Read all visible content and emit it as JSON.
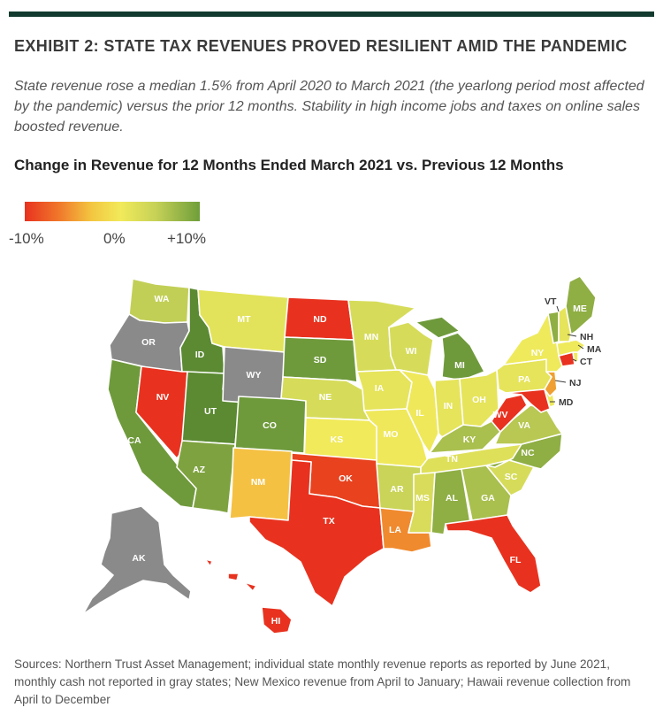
{
  "exhibit_title": "EXHIBIT 2: STATE TAX REVENUES PROVED RESILIENT AMID THE PANDEMIC",
  "subtitle": "State revenue rose a median 1.5% from April 2020 to March 2021 (the yearlong period most affected by the pandemic) versus the prior 12 months. Stability in high income jobs and taxes on online sales boosted revenue.",
  "map_title": "Change in Revenue for 12 Months Ended March 2021 vs. Previous 12 Months",
  "legend": {
    "min_label": "-10%",
    "mid_label": "0%",
    "max_label": "+10%",
    "colors": [
      "#e8321f",
      "#f07a2b",
      "#f3c640",
      "#f1ea5a",
      "#c6d157",
      "#6f9e3a"
    ],
    "not_reported_color": "#8a8a8a"
  },
  "states": {
    "WA": {
      "label": "WA",
      "color": "#c2cf57"
    },
    "OR": {
      "label": "OR",
      "color": "#8a8a8a"
    },
    "CA": {
      "label": "CA",
      "color": "#6f9a3c"
    },
    "ID": {
      "label": "ID",
      "color": "#5b8a32"
    },
    "NV": {
      "label": "NV",
      "color": "#e8321f"
    },
    "UT": {
      "label": "UT",
      "color": "#5b8a32"
    },
    "AZ": {
      "label": "AZ",
      "color": "#7ea23f"
    },
    "MT": {
      "label": "MT",
      "color": "#e2e35a"
    },
    "WY": {
      "label": "WY",
      "color": "#8a8a8a"
    },
    "CO": {
      "label": "CO",
      "color": "#6f9a3c"
    },
    "NM": {
      "label": "NM",
      "color": "#f5c143"
    },
    "ND": {
      "label": "ND",
      "color": "#e8321f"
    },
    "SD": {
      "label": "SD",
      "color": "#6f9a3c"
    },
    "NE": {
      "label": "NE",
      "color": "#d6dc5a"
    },
    "KS": {
      "label": "KS",
      "color": "#f1ea5a"
    },
    "OK": {
      "label": "OK",
      "color": "#e8421f"
    },
    "TX": {
      "label": "TX",
      "color": "#e8321f"
    },
    "MN": {
      "label": "MN",
      "color": "#d6dc5a"
    },
    "IA": {
      "label": "IA",
      "color": "#e6e45a"
    },
    "MO": {
      "label": "MO",
      "color": "#efe85a"
    },
    "AR": {
      "label": "AR",
      "color": "#c9d458"
    },
    "LA": {
      "label": "LA",
      "color": "#f08a2e"
    },
    "WI": {
      "label": "WI",
      "color": "#d6dc5a"
    },
    "IL": {
      "label": "IL",
      "color": "#efe85a"
    },
    "MI": {
      "label": "MI",
      "color": "#6f9a3c"
    },
    "IN": {
      "label": "IN",
      "color": "#e6e45a"
    },
    "OH": {
      "label": "OH",
      "color": "#e6e45a"
    },
    "KY": {
      "label": "KY",
      "color": "#a9bf4e"
    },
    "TN": {
      "label": "TN",
      "color": "#dfe05a"
    },
    "MS": {
      "label": "MS",
      "color": "#d9dc5a"
    },
    "AL": {
      "label": "AL",
      "color": "#8fae44"
    },
    "GA": {
      "label": "GA",
      "color": "#a9bf4e"
    },
    "FL": {
      "label": "FL",
      "color": "#e8321f"
    },
    "SC": {
      "label": "SC",
      "color": "#d6dc5a"
    },
    "NC": {
      "label": "NC",
      "color": "#8fae44"
    },
    "VA": {
      "label": "VA",
      "color": "#b8c852"
    },
    "WV": {
      "label": "WV",
      "color": "#e8321f"
    },
    "PA": {
      "label": "PA",
      "color": "#e6e45a"
    },
    "NY": {
      "label": "NY",
      "color": "#eeea5c"
    },
    "VT": {
      "label": "VT",
      "color": "#8fae44"
    },
    "NH": {
      "label": "NH",
      "color": "#e6e45a"
    },
    "ME": {
      "label": "ME",
      "color": "#8fae44"
    },
    "MA": {
      "label": "MA",
      "color": "#eeea5c"
    },
    "CT": {
      "label": "CT",
      "color": "#e8321f"
    },
    "NJ": {
      "label": "NJ",
      "color": "#f0a032"
    },
    "MD": {
      "label": "MD",
      "color": "#e8321f"
    },
    "AK": {
      "label": "AK",
      "color": "#8a8a8a"
    },
    "HI": {
      "label": "HI",
      "color": "#e8321f"
    },
    "RI": {
      "label": "",
      "color": "#eeea5c"
    },
    "DE": {
      "label": "",
      "color": "#eeea5c"
    }
  },
  "sources": "Sources: Northern Trust Asset Management; individual state monthly revenue reports as reported by June 2021, monthly cash not reported in gray states; New Mexico revenue from April to January; Hawaii revenue collection from April to December"
}
